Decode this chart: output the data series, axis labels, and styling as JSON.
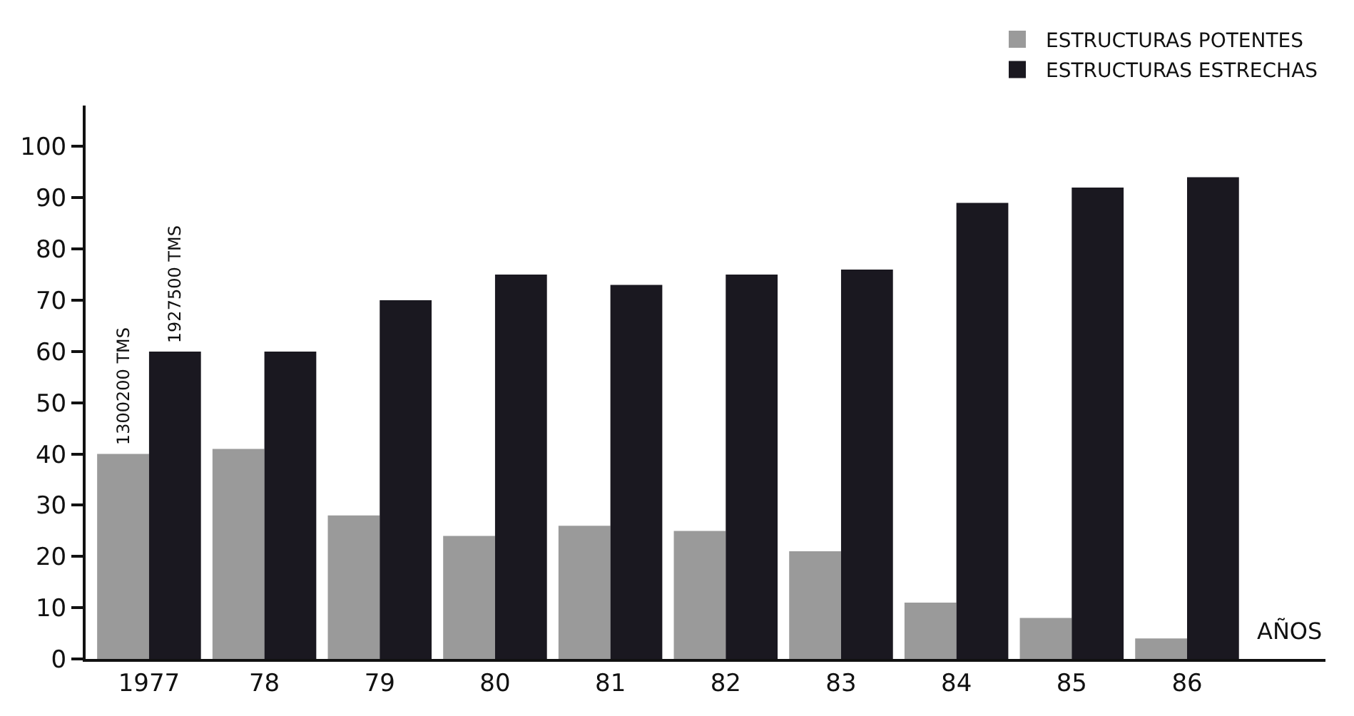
{
  "chart_data": {
    "type": "bar",
    "xlabel": "AÑOS",
    "categories": [
      "1977",
      "78",
      "79",
      "80",
      "81",
      "82",
      "83",
      "84",
      "85",
      "86"
    ],
    "series": [
      {
        "name": "ESTRUCTURAS POTENTES",
        "color": "#9a9a9a",
        "values": [
          40,
          41,
          28,
          24,
          26,
          25,
          21,
          11,
          8,
          4
        ]
      },
      {
        "name": "ESTRUCTURAS ESTRECHAS",
        "color": "#1a1820",
        "values": [
          60,
          60,
          70,
          75,
          73,
          75,
          76,
          89,
          92,
          94
        ]
      }
    ],
    "annotations": [
      {
        "text": "1300200 TMS",
        "x": "1977",
        "y": 40
      },
      {
        "text": "1927500 TMS",
        "x": "1977",
        "y": 60
      }
    ],
    "ylim": [
      0,
      108
    ],
    "yticks": [
      0,
      10,
      20,
      30,
      40,
      50,
      60,
      70,
      80,
      90,
      100
    ],
    "legend": "top right"
  }
}
